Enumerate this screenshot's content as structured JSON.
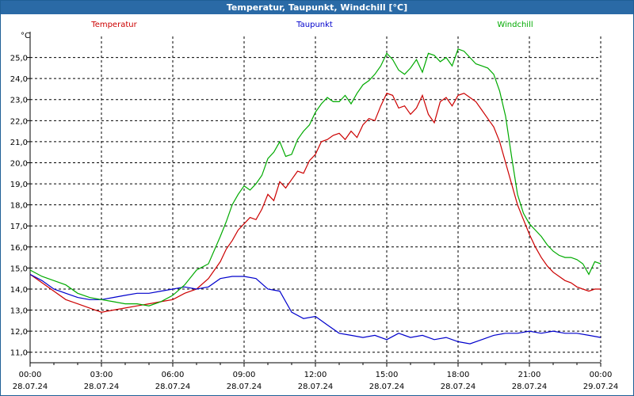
{
  "window": {
    "title": "Temperatur, Taupunkt, Windchill [°C]"
  },
  "chart_data": {
    "type": "line",
    "title": "Temperatur, Taupunkt, Windchill [°C]",
    "ylabel": "°C",
    "xlabel": "",
    "ylim": [
      10.5,
      26.0
    ],
    "xlim": [
      0,
      24
    ],
    "yticks": [
      "11,0",
      "12,0",
      "13,0",
      "14,0",
      "15,0",
      "16,0",
      "17,0",
      "18,0",
      "19,0",
      "20,0",
      "21,0",
      "22,0",
      "23,0",
      "24,0",
      "25,0"
    ],
    "xticks": [
      {
        "time": "00:00",
        "date": "28.07.24"
      },
      {
        "time": "03:00",
        "date": "28.07.24"
      },
      {
        "time": "06:00",
        "date": "28.07.24"
      },
      {
        "time": "09:00",
        "date": "28.07.24"
      },
      {
        "time": "12:00",
        "date": "28.07.24"
      },
      {
        "time": "15:00",
        "date": "28.07.24"
      },
      {
        "time": "18:00",
        "date": "28.07.24"
      },
      {
        "time": "21:00",
        "date": "28.07.24"
      },
      {
        "time": "00:00",
        "date": "29.07.24"
      }
    ],
    "grid": true,
    "colors": {
      "temperatur": "#cc0000",
      "taupunkt": "#0000cc",
      "windchill": "#00aa00",
      "grid": "#000000",
      "title_bg": "#2a6aa6"
    },
    "series": [
      {
        "name": "Temperatur",
        "x": [
          0,
          0.5,
          1,
          1.5,
          2,
          2.5,
          3,
          3.5,
          4,
          4.5,
          5,
          5.5,
          6,
          6.5,
          7,
          7.5,
          8,
          8.25,
          8.5,
          8.75,
          9,
          9.25,
          9.5,
          9.75,
          10,
          10.25,
          10.5,
          10.75,
          11,
          11.25,
          11.5,
          11.75,
          12,
          12.25,
          12.5,
          12.75,
          13,
          13.25,
          13.5,
          13.75,
          14,
          14.25,
          14.5,
          14.75,
          15,
          15.25,
          15.5,
          15.75,
          16,
          16.25,
          16.5,
          16.75,
          17,
          17.25,
          17.5,
          17.75,
          18,
          18.25,
          18.5,
          18.75,
          19,
          19.25,
          19.5,
          19.75,
          20,
          20.25,
          20.5,
          20.75,
          21,
          21.25,
          21.5,
          21.75,
          22,
          22.25,
          22.5,
          22.75,
          23,
          23.25,
          23.5,
          23.75,
          24
        ],
        "values": [
          14.7,
          14.3,
          13.9,
          13.5,
          13.3,
          13.1,
          12.9,
          13.0,
          13.1,
          13.2,
          13.3,
          13.4,
          13.5,
          13.8,
          14.0,
          14.5,
          15.3,
          15.9,
          16.3,
          16.8,
          17.1,
          17.4,
          17.3,
          17.8,
          18.5,
          18.2,
          19.1,
          18.8,
          19.2,
          19.6,
          19.5,
          20.1,
          20.4,
          21.0,
          21.1,
          21.3,
          21.4,
          21.1,
          21.5,
          21.2,
          21.8,
          22.1,
          22.0,
          22.7,
          23.3,
          23.2,
          22.6,
          22.7,
          22.3,
          22.6,
          23.2,
          22.3,
          21.9,
          22.9,
          23.1,
          22.7,
          23.2,
          23.3,
          23.1,
          22.9,
          22.5,
          22.1,
          21.7,
          21.0,
          20.0,
          19.0,
          18.0,
          17.3,
          16.6,
          16.0,
          15.5,
          15.1,
          14.8,
          14.6,
          14.4,
          14.3,
          14.1,
          14.0,
          13.9,
          14.0,
          14.0
        ]
      },
      {
        "name": "Taupunkt",
        "x": [
          0,
          0.5,
          1,
          1.5,
          2,
          2.5,
          3,
          3.5,
          4,
          4.5,
          5,
          5.5,
          6,
          6.5,
          7,
          7.5,
          8,
          8.5,
          9,
          9.5,
          10,
          10.5,
          11,
          11.5,
          12,
          12.5,
          13,
          13.5,
          14,
          14.5,
          15,
          15.5,
          16,
          16.5,
          17,
          17.5,
          18,
          18.5,
          19,
          19.5,
          20,
          20.5,
          21,
          21.5,
          22,
          22.5,
          23,
          23.5,
          24
        ],
        "values": [
          14.7,
          14.4,
          14.0,
          13.8,
          13.6,
          13.5,
          13.5,
          13.6,
          13.7,
          13.8,
          13.8,
          13.9,
          14.0,
          14.1,
          14.0,
          14.1,
          14.5,
          14.6,
          14.6,
          14.5,
          14.0,
          13.9,
          12.9,
          12.6,
          12.7,
          12.3,
          11.9,
          11.8,
          11.7,
          11.8,
          11.6,
          11.9,
          11.7,
          11.8,
          11.6,
          11.7,
          11.5,
          11.4,
          11.6,
          11.8,
          11.9,
          11.9,
          12.0,
          11.9,
          12.0,
          11.9,
          11.9,
          11.8,
          11.7
        ]
      },
      {
        "name": "Windchill",
        "x": [
          0,
          0.5,
          1,
          1.5,
          2,
          2.5,
          3,
          3.5,
          4,
          4.5,
          5,
          5.5,
          6,
          6.5,
          7,
          7.5,
          8,
          8.25,
          8.5,
          8.75,
          9,
          9.25,
          9.5,
          9.75,
          10,
          10.25,
          10.5,
          10.75,
          11,
          11.25,
          11.5,
          11.75,
          12,
          12.25,
          12.5,
          12.75,
          13,
          13.25,
          13.5,
          13.75,
          14,
          14.25,
          14.5,
          14.75,
          15,
          15.25,
          15.5,
          15.75,
          16,
          16.25,
          16.5,
          16.75,
          17,
          17.25,
          17.5,
          17.75,
          18,
          18.25,
          18.5,
          18.75,
          19,
          19.25,
          19.5,
          19.75,
          20,
          20.25,
          20.5,
          20.75,
          21,
          21.25,
          21.5,
          21.75,
          22,
          22.25,
          22.5,
          22.75,
          23,
          23.25,
          23.5,
          23.75,
          24
        ],
        "values": [
          14.9,
          14.6,
          14.4,
          14.2,
          13.8,
          13.6,
          13.5,
          13.4,
          13.3,
          13.3,
          13.2,
          13.4,
          13.7,
          14.2,
          14.9,
          15.2,
          16.5,
          17.2,
          18.0,
          18.5,
          18.9,
          18.7,
          19.0,
          19.4,
          20.2,
          20.5,
          21.0,
          20.3,
          20.4,
          21.1,
          21.5,
          21.8,
          22.4,
          22.8,
          23.1,
          22.9,
          22.9,
          23.2,
          22.8,
          23.3,
          23.7,
          23.9,
          24.2,
          24.6,
          25.2,
          24.9,
          24.4,
          24.2,
          24.5,
          24.9,
          24.3,
          25.2,
          25.1,
          24.8,
          25.0,
          24.6,
          25.4,
          25.3,
          25.0,
          24.7,
          24.6,
          24.5,
          24.2,
          23.4,
          22.2,
          20.3,
          18.5,
          17.6,
          17.1,
          16.8,
          16.5,
          16.1,
          15.8,
          15.6,
          15.5,
          15.5,
          15.4,
          15.2,
          14.7,
          15.3,
          15.2
        ]
      }
    ]
  }
}
